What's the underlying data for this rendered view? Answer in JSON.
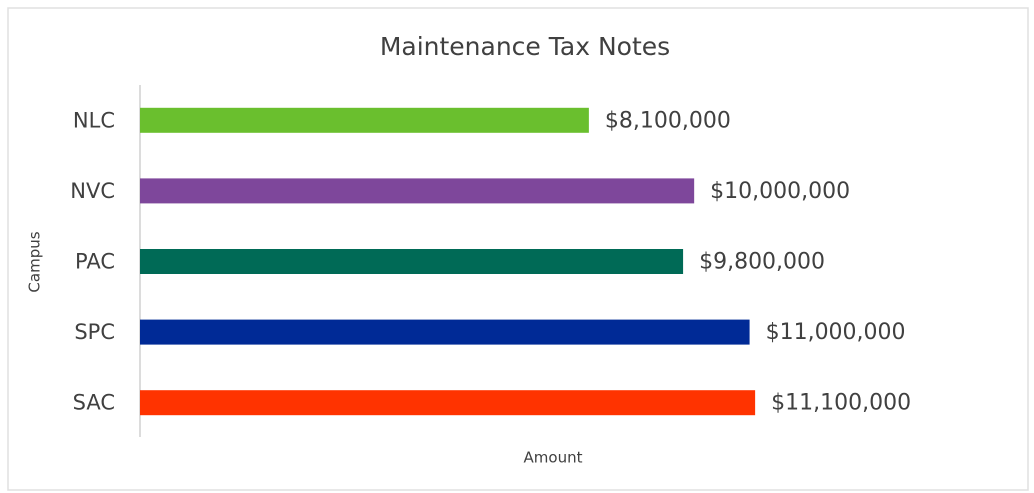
{
  "chart_data": {
    "type": "bar",
    "orientation": "horizontal",
    "title": "Maintenance Tax Notes",
    "x_label": "Amount",
    "y_label": "Campus",
    "categories": [
      "NLC",
      "NVC",
      "PAC",
      "SPC",
      "SAC"
    ],
    "values": [
      8100000,
      10000000,
      9800000,
      11000000,
      11100000
    ],
    "value_labels": [
      "$8,100,000",
      "$10,000,000",
      "$9,800,000",
      "$11,000,000",
      "$11,100,000"
    ],
    "colors": [
      "#6abf2e",
      "#7e479b",
      "#006a56",
      "#002a96",
      "#ff3300"
    ],
    "xlim": [
      0,
      12000000
    ],
    "grid": false
  }
}
